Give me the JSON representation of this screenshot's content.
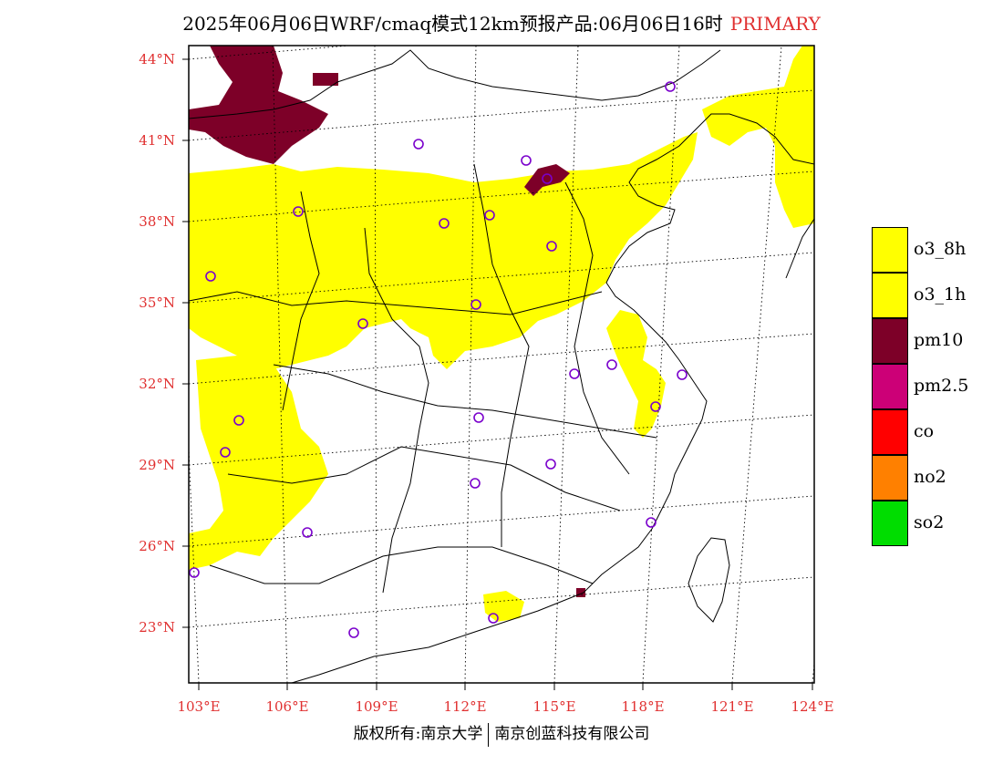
{
  "title": "2025年06月06日WRF/cmaq模式12km预报产品:06月06日16时",
  "title_tag": "PRIMARY",
  "map": {
    "lat_labels": [
      "44°N",
      "41°N",
      "38°N",
      "35°N",
      "32°N",
      "29°N",
      "26°N",
      "23°N"
    ],
    "lon_labels": [
      "103°E",
      "106°E",
      "109°E",
      "112°E",
      "115°E",
      "118°E",
      "121°E",
      "124°E"
    ],
    "extent": {
      "lon_min": 102.7,
      "lon_max": 124,
      "lat_min": 21.0,
      "lat_max": 44.5
    }
  },
  "legend": [
    {
      "label": "o3_8h",
      "color": "#ffff00"
    },
    {
      "label": "o3_1h",
      "color": "#ffff00"
    },
    {
      "label": "pm10",
      "color": "#7d0028"
    },
    {
      "label": "pm2.5",
      "color": "#cc0077"
    },
    {
      "label": "co",
      "color": "#ff0000"
    },
    {
      "label": "no2",
      "color": "#ff8000"
    },
    {
      "label": "so2",
      "color": "#00dd00"
    }
  ],
  "footer": {
    "left": "版权所有:南京大学",
    "right": "南京创蓝科技有限公司"
  }
}
